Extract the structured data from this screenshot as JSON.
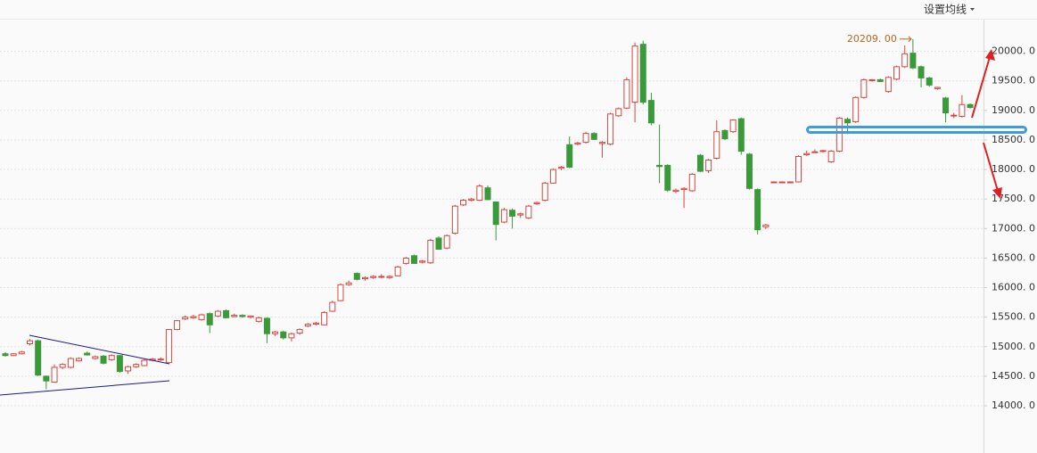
{
  "chart_data": {
    "type": "candlestick",
    "toolbar_button": "设置均线",
    "up_color": "#d9453e",
    "down_color": "#3a9a3a",
    "ylim": [
      13200,
      20870
    ],
    "yticks": [
      {
        "value": 14000,
        "label": "14000. 0"
      },
      {
        "value": 14500,
        "label": "14500. 0"
      },
      {
        "value": 15000,
        "label": "15000. 0"
      },
      {
        "value": 15500,
        "label": "15500. 0"
      },
      {
        "value": 16000,
        "label": "16000. 0"
      },
      {
        "value": 16500,
        "label": "16500. 0"
      },
      {
        "value": 17000,
        "label": "17000. 0"
      },
      {
        "value": 17500,
        "label": "17500. 0"
      },
      {
        "value": 18000,
        "label": "18000. 0"
      },
      {
        "value": 18500,
        "label": "18500. 0"
      },
      {
        "value": 19000,
        "label": "19000. 0"
      },
      {
        "value": 19500,
        "label": "19500. 0"
      },
      {
        "value": 20000,
        "label": "20000. 0"
      }
    ],
    "grid": true,
    "max_marker": {
      "value": 20209,
      "label": "20209. 00"
    },
    "ohlc": [
      [
        14880,
        14910,
        14830,
        14850
      ],
      [
        14850,
        14890,
        14840,
        14880
      ],
      [
        14880,
        14930,
        14870,
        14910
      ],
      [
        15050,
        15130,
        15020,
        15100
      ],
      [
        15100,
        15120,
        14500,
        14520
      ],
      [
        14500,
        14510,
        14280,
        14420
      ],
      [
        14400,
        14700,
        14390,
        14650
      ],
      [
        14650,
        14720,
        14620,
        14700
      ],
      [
        14650,
        14820,
        14630,
        14800
      ],
      [
        14760,
        14820,
        14750,
        14800
      ],
      [
        14890,
        14920,
        14850,
        14860
      ],
      [
        14800,
        14850,
        14780,
        14830
      ],
      [
        14840,
        14860,
        14700,
        14720
      ],
      [
        14780,
        14870,
        14760,
        14850
      ],
      [
        14850,
        14860,
        14560,
        14580
      ],
      [
        14590,
        14680,
        14540,
        14660
      ],
      [
        14660,
        14720,
        14640,
        14700
      ],
      [
        14680,
        14790,
        14670,
        14770
      ],
      [
        14770,
        14810,
        14750,
        14790
      ],
      [
        14780,
        14820,
        14760,
        14790
      ],
      [
        14730,
        15300,
        14720,
        15290
      ],
      [
        15290,
        15450,
        15280,
        15440
      ],
      [
        15470,
        15530,
        15450,
        15500
      ],
      [
        15490,
        15540,
        15470,
        15510
      ],
      [
        15460,
        15560,
        15440,
        15540
      ],
      [
        15560,
        15580,
        15230,
        15370
      ],
      [
        15520,
        15620,
        15500,
        15600
      ],
      [
        15610,
        15630,
        15480,
        15490
      ],
      [
        15510,
        15560,
        15500,
        15530
      ],
      [
        15530,
        15550,
        15490,
        15510
      ],
      [
        15500,
        15530,
        15480,
        15520
      ],
      [
        15430,
        15510,
        15410,
        15490
      ],
      [
        15480,
        15500,
        15060,
        15220
      ],
      [
        15220,
        15270,
        15180,
        15250
      ],
      [
        15250,
        15270,
        15120,
        15150
      ],
      [
        15150,
        15240,
        15090,
        15220
      ],
      [
        15230,
        15310,
        15200,
        15290
      ],
      [
        15350,
        15400,
        15330,
        15380
      ],
      [
        15380,
        15420,
        15360,
        15400
      ],
      [
        15370,
        15600,
        15360,
        15580
      ],
      [
        15600,
        15780,
        15590,
        15750
      ],
      [
        15780,
        16070,
        15770,
        16050
      ],
      [
        16050,
        16120,
        16030,
        16080
      ],
      [
        16240,
        16260,
        16120,
        16140
      ],
      [
        16150,
        16190,
        16120,
        16170
      ],
      [
        16170,
        16210,
        16150,
        16190
      ],
      [
        16180,
        16230,
        16160,
        16190
      ],
      [
        16170,
        16210,
        16150,
        16190
      ],
      [
        16200,
        16370,
        16190,
        16350
      ],
      [
        16410,
        16520,
        16390,
        16500
      ],
      [
        16540,
        16560,
        16400,
        16410
      ],
      [
        16430,
        16470,
        16410,
        16450
      ],
      [
        16420,
        16830,
        16400,
        16800
      ],
      [
        16840,
        16870,
        16640,
        16650
      ],
      [
        16670,
        16900,
        16650,
        16880
      ],
      [
        16920,
        17400,
        16900,
        17380
      ],
      [
        17400,
        17500,
        17380,
        17480
      ],
      [
        17480,
        17520,
        17460,
        17500
      ],
      [
        17480,
        17750,
        17470,
        17720
      ],
      [
        17690,
        17730,
        17480,
        17490
      ],
      [
        17450,
        17460,
        16800,
        17070
      ],
      [
        17110,
        17350,
        17090,
        17320
      ],
      [
        17310,
        17340,
        17000,
        17210
      ],
      [
        17230,
        17270,
        17180,
        17250
      ],
      [
        17180,
        17400,
        17160,
        17380
      ],
      [
        17420,
        17460,
        17400,
        17440
      ],
      [
        17480,
        17790,
        17460,
        17770
      ],
      [
        17770,
        18020,
        17760,
        18000
      ],
      [
        18020,
        18060,
        17990,
        18040
      ],
      [
        18420,
        18560,
        18020,
        18040
      ],
      [
        18430,
        18470,
        18410,
        18450
      ],
      [
        18460,
        18640,
        18440,
        18610
      ],
      [
        18610,
        18630,
        18500,
        18510
      ],
      [
        18440,
        18480,
        18200,
        18460
      ],
      [
        18430,
        18960,
        18410,
        18940
      ],
      [
        18910,
        19050,
        18890,
        19030
      ],
      [
        19040,
        19560,
        19020,
        19520
      ],
      [
        19140,
        20150,
        18800,
        20090
      ],
      [
        20120,
        20180,
        19100,
        19140
      ],
      [
        19170,
        19300,
        18750,
        18790
      ],
      [
        18070,
        18760,
        17770,
        18050
      ],
      [
        18070,
        18090,
        17620,
        17650
      ],
      [
        17630,
        17680,
        17600,
        17650
      ],
      [
        17660,
        17700,
        17350,
        17680
      ],
      [
        17640,
        17940,
        17620,
        17920
      ],
      [
        18240,
        18260,
        17960,
        17970
      ],
      [
        17980,
        18180,
        17940,
        18160
      ],
      [
        18190,
        18830,
        18170,
        18640
      ],
      [
        18660,
        18680,
        18500,
        18520
      ],
      [
        18640,
        18850,
        18620,
        18840
      ],
      [
        18860,
        18880,
        18250,
        18310
      ],
      [
        18260,
        18280,
        17660,
        17680
      ],
      [
        17660,
        17680,
        16900,
        16980
      ],
      [
        17030,
        17080,
        16990,
        17060
      ],
      [
        17790,
        17790,
        17790,
        17790
      ],
      [
        17790,
        17790,
        17790,
        17790
      ],
      [
        17790,
        17790,
        17790,
        17790
      ],
      [
        17790,
        18240,
        17780,
        18220
      ],
      [
        18250,
        18320,
        18230,
        18270
      ],
      [
        18290,
        18340,
        18280,
        18300
      ],
      [
        18310,
        18330,
        18290,
        18320
      ],
      [
        18130,
        18330,
        18110,
        18310
      ],
      [
        18310,
        18890,
        18290,
        18870
      ],
      [
        18850,
        18880,
        18600,
        18790
      ],
      [
        18810,
        19240,
        18790,
        19220
      ],
      [
        19220,
        19540,
        19200,
        19520
      ],
      [
        19510,
        19530,
        19490,
        19520
      ],
      [
        19520,
        19540,
        19480,
        19490
      ],
      [
        19320,
        19580,
        19300,
        19560
      ],
      [
        19530,
        19760,
        19510,
        19740
      ],
      [
        19740,
        20100,
        19720,
        19960
      ],
      [
        19970,
        20209,
        19700,
        19720
      ],
      [
        19740,
        19760,
        19390,
        19550
      ],
      [
        19550,
        19570,
        19400,
        19430
      ],
      [
        19370,
        19400,
        19350,
        19390
      ],
      [
        19210,
        19230,
        18800,
        18960
      ],
      [
        18910,
        18960,
        18870,
        18920
      ],
      [
        18900,
        19260,
        18880,
        19100
      ],
      [
        19100,
        19120,
        19030,
        19050
      ]
    ]
  }
}
